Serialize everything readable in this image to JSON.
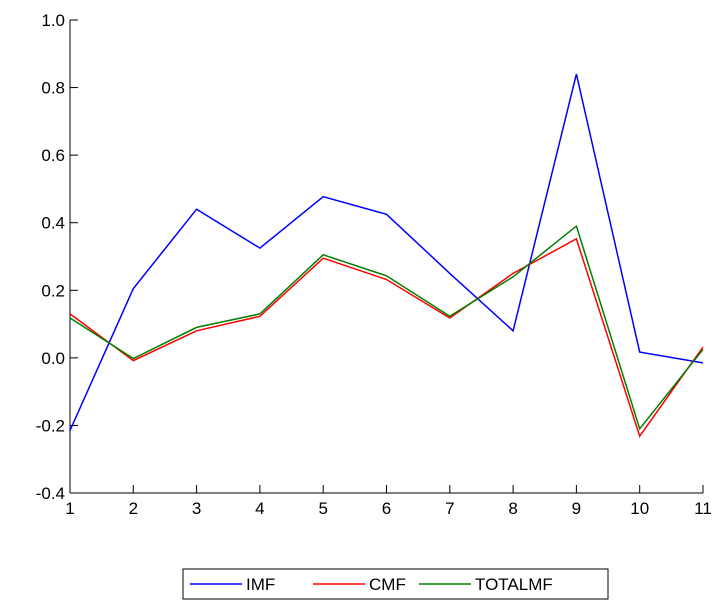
{
  "chart_data": {
    "type": "line",
    "x": [
      1,
      2,
      3,
      4,
      5,
      6,
      7,
      8,
      9,
      10,
      11
    ],
    "x_tick_labels": [
      "1",
      "2",
      "3",
      "4",
      "5",
      "6",
      "7",
      "8",
      "9",
      "10",
      "11"
    ],
    "xlim": [
      1,
      11
    ],
    "ylim": [
      -0.4,
      1.0
    ],
    "y_ticks": [
      -0.4,
      -0.2,
      0.0,
      0.2,
      0.4,
      0.6,
      0.8,
      1.0
    ],
    "y_tick_labels": [
      "-0.4",
      "-0.2",
      "0.0",
      "0.2",
      "0.4",
      "0.6",
      "0.8",
      "1.0"
    ],
    "grid": false,
    "legend_position": "bottom-center",
    "series": [
      {
        "name": "IMF",
        "color": "#0000ff",
        "values": [
          -0.215,
          0.205,
          0.44,
          0.325,
          0.477,
          0.425,
          0.25,
          0.08,
          0.84,
          0.017,
          -0.015
        ]
      },
      {
        "name": "CMF",
        "color": "#ff0000",
        "values": [
          0.13,
          -0.008,
          0.08,
          0.123,
          0.295,
          0.232,
          0.118,
          0.25,
          0.352,
          -0.232,
          0.032
        ]
      },
      {
        "name": "TOTALMF",
        "color": "#008000",
        "values": [
          0.118,
          -0.002,
          0.09,
          0.13,
          0.305,
          0.243,
          0.123,
          0.24,
          0.39,
          -0.21,
          0.025
        ]
      }
    ]
  }
}
